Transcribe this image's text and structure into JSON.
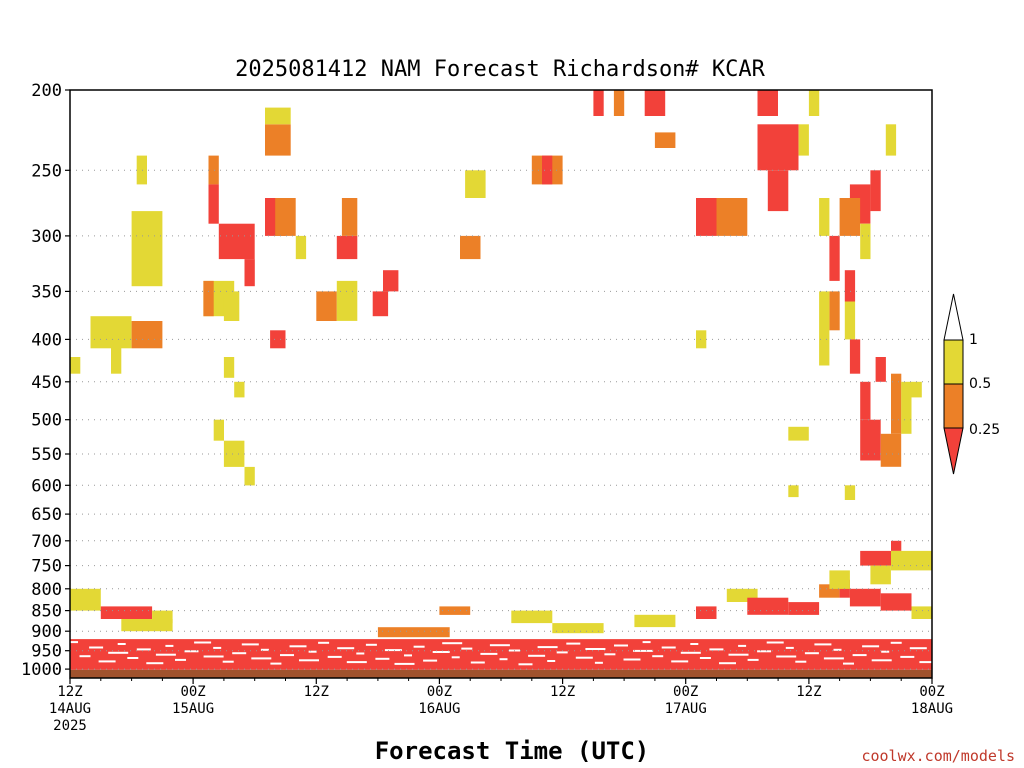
{
  "chart_data": {
    "type": "heatmap",
    "title": "2025081412 NAM Forecast Richardson# KCAR",
    "xlabel": "Forecast Time (UTC)",
    "ylabel": "",
    "credit": "coolwx.com/models",
    "x_ticks": [
      {
        "hour": 0,
        "line1": "12Z",
        "line2": "14AUG",
        "line3": "2025"
      },
      {
        "hour": 12,
        "line1": "00Z",
        "line2": "15AUG",
        "line3": ""
      },
      {
        "hour": 24,
        "line1": "12Z",
        "line2": "",
        "line3": ""
      },
      {
        "hour": 36,
        "line1": "00Z",
        "line2": "16AUG",
        "line3": ""
      },
      {
        "hour": 48,
        "line1": "12Z",
        "line2": "",
        "line3": ""
      },
      {
        "hour": 60,
        "line1": "00Z",
        "line2": "17AUG",
        "line3": ""
      },
      {
        "hour": 72,
        "line1": "12Z",
        "line2": "",
        "line3": ""
      },
      {
        "hour": 84,
        "line1": "00Z",
        "line2": "18AUG",
        "line3": ""
      }
    ],
    "xlim": [
      0,
      84
    ],
    "y_ticks": [
      200,
      250,
      300,
      350,
      400,
      450,
      500,
      550,
      600,
      650,
      700,
      750,
      800,
      850,
      900,
      950,
      1000
    ],
    "y_ticks_labels": [
      "200",
      "250",
      "300",
      "350",
      "400",
      "450",
      "500",
      "550",
      "600",
      "650",
      "700",
      "750",
      "800",
      "850",
      "900",
      "950",
      "1000"
    ],
    "ylim": [
      1025,
      200
    ],
    "yscale": "log",
    "grid": "horizontal dotted",
    "legend": {
      "placement": "right",
      "labels": [
        "1",
        "0.5",
        "0.25"
      ],
      "bins": [
        {
          "range": "0.5-1",
          "color": "#e3d835"
        },
        {
          "range": "0.25-0.5",
          "color": "#ec8027"
        },
        {
          "range": "<0.25",
          "color": "#f2413a"
        }
      ]
    },
    "ground": {
      "from_pressure": 1002,
      "color": "#a0522d"
    },
    "boundary_layer": {
      "top_pressure": 920,
      "color": "#f2413a"
    },
    "cells": [
      {
        "t": [
          6,
          9
        ],
        "p": [
          380,
          410
        ],
        "c": "o"
      },
      {
        "t": [
          2,
          6
        ],
        "p": [
          375,
          410
        ],
        "c": "y"
      },
      {
        "t": [
          4,
          5
        ],
        "p": [
          400,
          440
        ],
        "c": "y"
      },
      {
        "t": [
          6,
          9
        ],
        "p": [
          280,
          345
        ],
        "c": "y"
      },
      {
        "t": [
          6.5,
          7.5
        ],
        "p": [
          240,
          260
        ],
        "c": "y"
      },
      {
        "t": [
          13,
          16
        ],
        "p": [
          340,
          375
        ],
        "c": "y"
      },
      {
        "t": [
          13,
          14
        ],
        "p": [
          340,
          375
        ],
        "c": "o"
      },
      {
        "t": [
          14.5,
          18
        ],
        "p": [
          290,
          320
        ],
        "c": "r"
      },
      {
        "t": [
          13.5,
          14.5
        ],
        "p": [
          240,
          260
        ],
        "c": "o"
      },
      {
        "t": [
          13.5,
          14.5
        ],
        "p": [
          260,
          290
        ],
        "c": "r"
      },
      {
        "t": [
          19,
          21
        ],
        "p": [
          270,
          300
        ],
        "c": "r"
      },
      {
        "t": [
          20,
          22
        ],
        "p": [
          270,
          300
        ],
        "c": "o"
      },
      {
        "t": [
          22,
          23
        ],
        "p": [
          300,
          320
        ],
        "c": "y"
      },
      {
        "t": [
          19,
          21.5
        ],
        "p": [
          220,
          240
        ],
        "c": "o"
      },
      {
        "t": [
          19,
          21.5
        ],
        "p": [
          210,
          220
        ],
        "c": "y"
      },
      {
        "t": [
          17,
          18
        ],
        "p": [
          320,
          345
        ],
        "c": "r"
      },
      {
        "t": [
          24,
          26
        ],
        "p": [
          350,
          380
        ],
        "c": "o"
      },
      {
        "t": [
          26,
          28
        ],
        "p": [
          340,
          380
        ],
        "c": "y"
      },
      {
        "t": [
          26,
          28
        ],
        "p": [
          300,
          320
        ],
        "c": "r"
      },
      {
        "t": [
          26.5,
          28
        ],
        "p": [
          270,
          300
        ],
        "c": "o"
      },
      {
        "t": [
          29.5,
          31
        ],
        "p": [
          350,
          375
        ],
        "c": "r"
      },
      {
        "t": [
          30.5,
          32
        ],
        "p": [
          330,
          350
        ],
        "c": "r"
      },
      {
        "t": [
          19.5,
          21
        ],
        "p": [
          390,
          410
        ],
        "c": "r"
      },
      {
        "t": [
          15,
          16.5
        ],
        "p": [
          350,
          380
        ],
        "c": "y"
      },
      {
        "t": [
          38,
          40
        ],
        "p": [
          300,
          320
        ],
        "c": "o"
      },
      {
        "t": [
          38.5,
          40.5
        ],
        "p": [
          250,
          270
        ],
        "c": "y"
      },
      {
        "t": [
          45,
          48
        ],
        "p": [
          240,
          260
        ],
        "c": "o"
      },
      {
        "t": [
          46,
          47
        ],
        "p": [
          240,
          260
        ],
        "c": "r"
      },
      {
        "t": [
          51,
          52
        ],
        "p": [
          200,
          215
        ],
        "c": "r"
      },
      {
        "t": [
          53,
          54
        ],
        "p": [
          200,
          215
        ],
        "c": "o"
      },
      {
        "t": [
          56,
          58
        ],
        "p": [
          200,
          215
        ],
        "c": "r"
      },
      {
        "t": [
          57,
          59
        ],
        "p": [
          225,
          235
        ],
        "c": "o"
      },
      {
        "t": [
          61,
          63
        ],
        "p": [
          270,
          300
        ],
        "c": "r"
      },
      {
        "t": [
          63,
          66
        ],
        "p": [
          270,
          300
        ],
        "c": "o"
      },
      {
        "t": [
          67,
          69
        ],
        "p": [
          200,
          215
        ],
        "c": "r"
      },
      {
        "t": [
          67,
          71
        ],
        "p": [
          220,
          250
        ],
        "c": "r"
      },
      {
        "t": [
          68,
          70
        ],
        "p": [
          250,
          280
        ],
        "c": "r"
      },
      {
        "t": [
          72,
          73
        ],
        "p": [
          200,
          215
        ],
        "c": "y"
      },
      {
        "t": [
          76,
          78
        ],
        "p": [
          260,
          290
        ],
        "c": "r"
      },
      {
        "t": [
          75,
          77
        ],
        "p": [
          270,
          300
        ],
        "c": "o"
      },
      {
        "t": [
          78,
          79
        ],
        "p": [
          250,
          280
        ],
        "c": "r"
      },
      {
        "t": [
          79.5,
          80.5
        ],
        "p": [
          220,
          240
        ],
        "c": "y"
      },
      {
        "t": [
          77,
          78
        ],
        "p": [
          290,
          320
        ],
        "c": "y"
      },
      {
        "t": [
          75.5,
          76.5
        ],
        "p": [
          330,
          360
        ],
        "c": "r"
      },
      {
        "t": [
          75.5,
          76.5
        ],
        "p": [
          360,
          400
        ],
        "c": "y"
      },
      {
        "t": [
          76,
          77
        ],
        "p": [
          400,
          440
        ],
        "c": "r"
      },
      {
        "t": [
          77,
          78
        ],
        "p": [
          450,
          500
        ],
        "c": "r"
      },
      {
        "t": [
          77,
          79
        ],
        "p": [
          500,
          560
        ],
        "c": "r"
      },
      {
        "t": [
          79,
          81
        ],
        "p": [
          520,
          570
        ],
        "c": "o"
      },
      {
        "t": [
          80,
          81
        ],
        "p": [
          440,
          520
        ],
        "c": "o"
      },
      {
        "t": [
          81,
          82
        ],
        "p": [
          450,
          520
        ],
        "c": "y"
      },
      {
        "t": [
          82,
          83
        ],
        "p": [
          450,
          470
        ],
        "c": "y"
      },
      {
        "t": [
          78.5,
          79.5
        ],
        "p": [
          420,
          450
        ],
        "c": "r"
      },
      {
        "t": [
          74,
          75
        ],
        "p": [
          350,
          390
        ],
        "c": "o"
      },
      {
        "t": [
          73,
          74
        ],
        "p": [
          350,
          430
        ],
        "c": "y"
      },
      {
        "t": [
          71,
          72
        ],
        "p": [
          220,
          240
        ],
        "c": "y"
      },
      {
        "t": [
          73,
          74
        ],
        "p": [
          270,
          300
        ],
        "c": "y"
      },
      {
        "t": [
          74,
          75
        ],
        "p": [
          300,
          340
        ],
        "c": "r"
      },
      {
        "t": [
          0,
          1
        ],
        "p": [
          420,
          440
        ],
        "c": "y"
      },
      {
        "t": [
          15,
          16
        ],
        "p": [
          420,
          445
        ],
        "c": "y"
      },
      {
        "t": [
          16,
          17
        ],
        "p": [
          450,
          470
        ],
        "c": "y"
      },
      {
        "t": [
          14,
          15
        ],
        "p": [
          500,
          530
        ],
        "c": "y"
      },
      {
        "t": [
          15,
          17
        ],
        "p": [
          530,
          570
        ],
        "c": "y"
      },
      {
        "t": [
          17,
          18
        ],
        "p": [
          570,
          600
        ],
        "c": "y"
      },
      {
        "t": [
          61,
          62
        ],
        "p": [
          390,
          410
        ],
        "c": "y"
      },
      {
        "t": [
          70,
          72
        ],
        "p": [
          510,
          530
        ],
        "c": "y"
      },
      {
        "t": [
          70,
          71
        ],
        "p": [
          600,
          620
        ],
        "c": "y"
      },
      {
        "t": [
          75.5,
          76.5
        ],
        "p": [
          600,
          625
        ],
        "c": "y"
      },
      {
        "t": [
          0,
          3
        ],
        "p": [
          800,
          850
        ],
        "c": "y"
      },
      {
        "t": [
          3,
          8
        ],
        "p": [
          840,
          870
        ],
        "c": "r"
      },
      {
        "t": [
          8,
          10
        ],
        "p": [
          850,
          880
        ],
        "c": "y"
      },
      {
        "t": [
          55,
          59
        ],
        "p": [
          860,
          890
        ],
        "c": "y"
      },
      {
        "t": [
          61,
          63
        ],
        "p": [
          840,
          870
        ],
        "c": "r"
      },
      {
        "t": [
          64,
          67
        ],
        "p": [
          800,
          830
        ],
        "c": "y"
      },
      {
        "t": [
          66,
          70
        ],
        "p": [
          820,
          860
        ],
        "c": "r"
      },
      {
        "t": [
          70,
          73
        ],
        "p": [
          830,
          860
        ],
        "c": "r"
      },
      {
        "t": [
          73,
          75
        ],
        "p": [
          790,
          820
        ],
        "c": "o"
      },
      {
        "t": [
          75,
          76
        ],
        "p": [
          780,
          820
        ],
        "c": "r"
      },
      {
        "t": [
          77,
          80
        ],
        "p": [
          720,
          750
        ],
        "c": "r"
      },
      {
        "t": [
          80,
          81
        ],
        "p": [
          700,
          720
        ],
        "c": "r"
      },
      {
        "t": [
          80,
          84
        ],
        "p": [
          720,
          760
        ],
        "c": "y"
      },
      {
        "t": [
          78,
          80
        ],
        "p": [
          750,
          790
        ],
        "c": "y"
      },
      {
        "t": [
          74,
          76
        ],
        "p": [
          760,
          800
        ],
        "c": "y"
      },
      {
        "t": [
          76,
          79
        ],
        "p": [
          800,
          840
        ],
        "c": "r"
      },
      {
        "t": [
          79,
          82
        ],
        "p": [
          810,
          850
        ],
        "c": "r"
      },
      {
        "t": [
          82,
          84
        ],
        "p": [
          840,
          870
        ],
        "c": "y"
      },
      {
        "t": [
          5,
          10
        ],
        "p": [
          870,
          900
        ],
        "c": "y"
      },
      {
        "t": [
          30,
          37
        ],
        "p": [
          890,
          915
        ],
        "c": "o"
      },
      {
        "t": [
          36,
          39
        ],
        "p": [
          840,
          860
        ],
        "c": "o"
      },
      {
        "t": [
          43,
          47
        ],
        "p": [
          850,
          880
        ],
        "c": "y"
      },
      {
        "t": [
          47,
          52
        ],
        "p": [
          880,
          905
        ],
        "c": "y"
      }
    ]
  }
}
